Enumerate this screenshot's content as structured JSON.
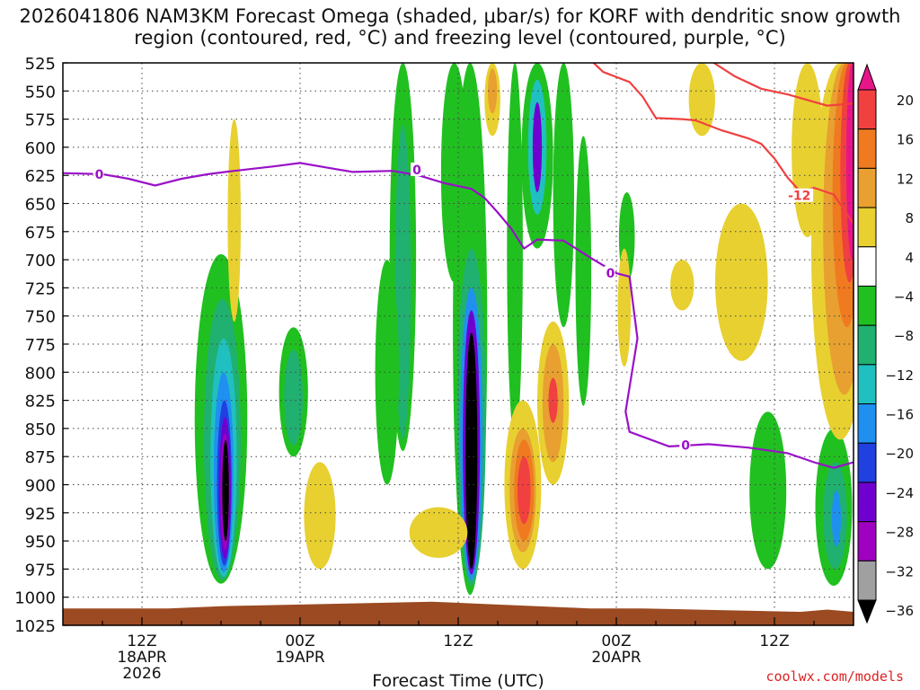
{
  "chart_data": {
    "type": "heatmap",
    "title": "2026041806 NAM3KM Forecast Omega (shaded, μbar/s) for KORF with dendritic snow growth region (contoured, red, °C) and freezing level (contoured, purple, °C)",
    "xlabel": "Forecast Time (UTC)",
    "ylabel": "",
    "x_ticks": [
      {
        "hours": 6,
        "label1": "12Z",
        "label2": "18APR",
        "label3": "2026"
      },
      {
        "hours": 18,
        "label1": "00Z",
        "label2": "19APR",
        "label3": ""
      },
      {
        "hours": 30,
        "label1": "12Z",
        "label2": "",
        "label3": ""
      },
      {
        "hours": 42,
        "label1": "00Z",
        "label2": "20APR",
        "label3": ""
      },
      {
        "hours": 54,
        "label1": "12Z",
        "label2": "",
        "label3": ""
      }
    ],
    "xlim_hours": [
      0,
      60
    ],
    "y_levels_mb": [
      525,
      550,
      575,
      600,
      625,
      650,
      675,
      700,
      725,
      750,
      775,
      800,
      825,
      850,
      875,
      900,
      925,
      950,
      975,
      1000,
      1025
    ],
    "ylim_mb": [
      525,
      1025
    ],
    "colorbar": {
      "ticks": [
        20,
        16,
        12,
        8,
        4,
        -4,
        -8,
        -12,
        -16,
        -20,
        -24,
        -28,
        -32,
        -36
      ],
      "colors": [
        "#e8158a",
        "#f04040",
        "#f07a20",
        "#e8a030",
        "#e8d030",
        "#ffffff",
        "#20c020",
        "#20b070",
        "#20c0c0",
        "#2090f0",
        "#2040e0",
        "#7000d0",
        "#a000c0",
        "#a0a0a0",
        "#000000"
      ]
    },
    "freezing_level": {
      "label": "0",
      "points": [
        [
          0,
          623
        ],
        [
          3,
          624
        ],
        [
          5,
          628
        ],
        [
          7,
          634
        ],
        [
          9,
          628
        ],
        [
          11,
          624
        ],
        [
          13,
          621
        ],
        [
          16,
          617
        ],
        [
          18,
          614
        ],
        [
          20,
          618
        ],
        [
          22,
          622
        ],
        [
          25,
          621
        ],
        [
          27,
          625
        ],
        [
          29,
          632
        ],
        [
          31,
          637
        ],
        [
          32,
          645
        ],
        [
          33,
          658
        ],
        [
          34,
          672
        ],
        [
          35,
          690
        ],
        [
          36,
          682
        ],
        [
          38,
          683
        ],
        [
          40,
          698
        ],
        [
          42,
          712
        ],
        [
          43,
          715
        ],
        [
          43.6,
          770
        ],
        [
          42.7,
          835
        ],
        [
          43,
          853
        ],
        [
          46,
          866
        ],
        [
          49,
          864
        ],
        [
          52,
          867
        ],
        [
          55,
          872
        ],
        [
          57,
          880
        ],
        [
          58.5,
          885
        ],
        [
          60,
          880
        ]
      ]
    },
    "dgz_contour": {
      "label": "-12",
      "points": [
        [
          40,
          522
        ],
        [
          41,
          533
        ],
        [
          43,
          542
        ],
        [
          44,
          555
        ],
        [
          45,
          574
        ],
        [
          47,
          575
        ],
        [
          48,
          576
        ],
        [
          50,
          585
        ],
        [
          52,
          592
        ],
        [
          53,
          597
        ],
        [
          54,
          610
        ],
        [
          55,
          627
        ],
        [
          56,
          640
        ],
        [
          57,
          636
        ],
        [
          58.5,
          642
        ],
        [
          60,
          668
        ]
      ]
    },
    "dgz_contour_upper": {
      "points": [
        [
          49,
          522
        ],
        [
          51,
          537
        ],
        [
          53,
          548
        ],
        [
          55,
          553
        ],
        [
          56.5,
          558
        ],
        [
          58,
          563
        ],
        [
          60,
          561
        ]
      ]
    },
    "omega_regions": [
      {
        "value": -4,
        "time": 12.0,
        "top": 695,
        "bottom": 988,
        "width": 2.0
      },
      {
        "value": -8,
        "time": 12.1,
        "top": 735,
        "bottom": 985,
        "width": 1.4
      },
      {
        "value": -12,
        "time": 12.2,
        "top": 770,
        "bottom": 982,
        "width": 1.0
      },
      {
        "value": -16,
        "time": 12.2,
        "top": 800,
        "bottom": 978,
        "width": 0.75
      },
      {
        "value": -20,
        "time": 12.25,
        "top": 825,
        "bottom": 972,
        "width": 0.55
      },
      {
        "value": -24,
        "time": 12.3,
        "top": 840,
        "bottom": 966,
        "width": 0.45
      },
      {
        "value": -28,
        "time": 12.3,
        "top": 855,
        "bottom": 958,
        "width": 0.35
      },
      {
        "value": -36,
        "time": 12.35,
        "top": 860,
        "bottom": 950,
        "width": 0.25
      },
      {
        "value": -4,
        "time": 30.9,
        "top": 525,
        "bottom": 998,
        "width": 1.3
      },
      {
        "value": -8,
        "time": 31.0,
        "top": 690,
        "bottom": 990,
        "width": 1.1
      },
      {
        "value": -16,
        "time": 31.0,
        "top": 725,
        "bottom": 985,
        "width": 0.85
      },
      {
        "value": -24,
        "time": 31.0,
        "top": 745,
        "bottom": 980,
        "width": 0.65
      },
      {
        "value": -36,
        "time": 31.0,
        "top": 765,
        "bottom": 975,
        "width": 0.45
      },
      {
        "value": -4,
        "time": 36.0,
        "top": 525,
        "bottom": 690,
        "width": 1.2
      },
      {
        "value": -12,
        "time": 36.0,
        "top": 540,
        "bottom": 660,
        "width": 0.7
      },
      {
        "value": -24,
        "time": 36.0,
        "top": 560,
        "bottom": 640,
        "width": 0.35
      },
      {
        "value": -4,
        "time": 25.8,
        "top": 525,
        "bottom": 870,
        "width": 1.0
      },
      {
        "value": -8,
        "time": 25.8,
        "top": 580,
        "bottom": 860,
        "width": 0.6
      },
      {
        "value": -4,
        "time": 17.5,
        "top": 760,
        "bottom": 875,
        "width": 1.1
      },
      {
        "value": -8,
        "time": 17.5,
        "top": 780,
        "bottom": 865,
        "width": 0.7
      },
      {
        "value": -4,
        "time": 24.6,
        "top": 700,
        "bottom": 900,
        "width": 0.9
      },
      {
        "value": -4,
        "time": 29.7,
        "top": 525,
        "bottom": 720,
        "width": 1.0
      },
      {
        "value": -4,
        "time": 34.3,
        "top": 525,
        "bottom": 860,
        "width": 0.6
      },
      {
        "value": -4,
        "time": 38.0,
        "top": 525,
        "bottom": 760,
        "width": 0.8
      },
      {
        "value": -4,
        "time": 39.5,
        "top": 590,
        "bottom": 830,
        "width": 0.6
      },
      {
        "value": -4,
        "time": 42.8,
        "top": 640,
        "bottom": 720,
        "width": 0.6
      },
      {
        "value": -4,
        "time": 53.5,
        "top": 835,
        "bottom": 975,
        "width": 1.4
      },
      {
        "value": -4,
        "time": 58.5,
        "top": 850,
        "bottom": 990,
        "width": 1.4
      },
      {
        "value": -8,
        "time": 58.6,
        "top": 880,
        "bottom": 975,
        "width": 0.9
      },
      {
        "value": -16,
        "time": 58.7,
        "top": 905,
        "bottom": 955,
        "width": 0.35
      },
      {
        "value": 4,
        "time": 13.0,
        "top": 575,
        "bottom": 755,
        "width": 0.5
      },
      {
        "value": 4,
        "time": 34.9,
        "top": 825,
        "bottom": 975,
        "width": 1.4
      },
      {
        "value": 8,
        "time": 34.9,
        "top": 850,
        "bottom": 960,
        "width": 1.0
      },
      {
        "value": 12,
        "time": 35.0,
        "top": 860,
        "bottom": 950,
        "width": 0.75
      },
      {
        "value": 16,
        "time": 35.0,
        "top": 875,
        "bottom": 935,
        "width": 0.5
      },
      {
        "value": 4,
        "time": 37.2,
        "top": 755,
        "bottom": 900,
        "width": 1.2
      },
      {
        "value": 8,
        "time": 37.2,
        "top": 775,
        "bottom": 880,
        "width": 0.8
      },
      {
        "value": 16,
        "time": 37.2,
        "top": 805,
        "bottom": 845,
        "width": 0.35
      },
      {
        "value": 4,
        "time": 32.6,
        "top": 525,
        "bottom": 590,
        "width": 0.6
      },
      {
        "value": 8,
        "time": 32.6,
        "top": 530,
        "bottom": 570,
        "width": 0.35
      },
      {
        "value": 4,
        "time": 19.5,
        "top": 880,
        "bottom": 975,
        "width": 1.2
      },
      {
        "value": 4,
        "time": 28.5,
        "top": 920,
        "bottom": 965,
        "width": 2.2
      },
      {
        "value": 4,
        "time": 42.6,
        "top": 690,
        "bottom": 795,
        "width": 0.5
      },
      {
        "value": 4,
        "time": 48.5,
        "top": 525,
        "bottom": 590,
        "width": 1.0
      },
      {
        "value": 4,
        "time": 51.5,
        "top": 650,
        "bottom": 790,
        "width": 2.0
      },
      {
        "value": 4,
        "time": 47.0,
        "top": 700,
        "bottom": 745,
        "width": 0.9
      },
      {
        "value": 4,
        "time": 56.5,
        "top": 525,
        "bottom": 680,
        "width": 1.2
      },
      {
        "value": 4,
        "time": 59.0,
        "top": 525,
        "bottom": 860,
        "width": 2.2
      },
      {
        "value": 8,
        "time": 59.3,
        "top": 525,
        "bottom": 820,
        "width": 1.6
      },
      {
        "value": 12,
        "time": 59.5,
        "top": 525,
        "bottom": 760,
        "width": 1.1
      },
      {
        "value": 16,
        "time": 59.7,
        "top": 525,
        "bottom": 720,
        "width": 0.7
      },
      {
        "value": 20,
        "time": 59.9,
        "top": 525,
        "bottom": 700,
        "width": 0.45
      }
    ],
    "terrain": {
      "color": "#9b4a22",
      "label": "surface"
    }
  },
  "credit": "coolwx.com/models"
}
